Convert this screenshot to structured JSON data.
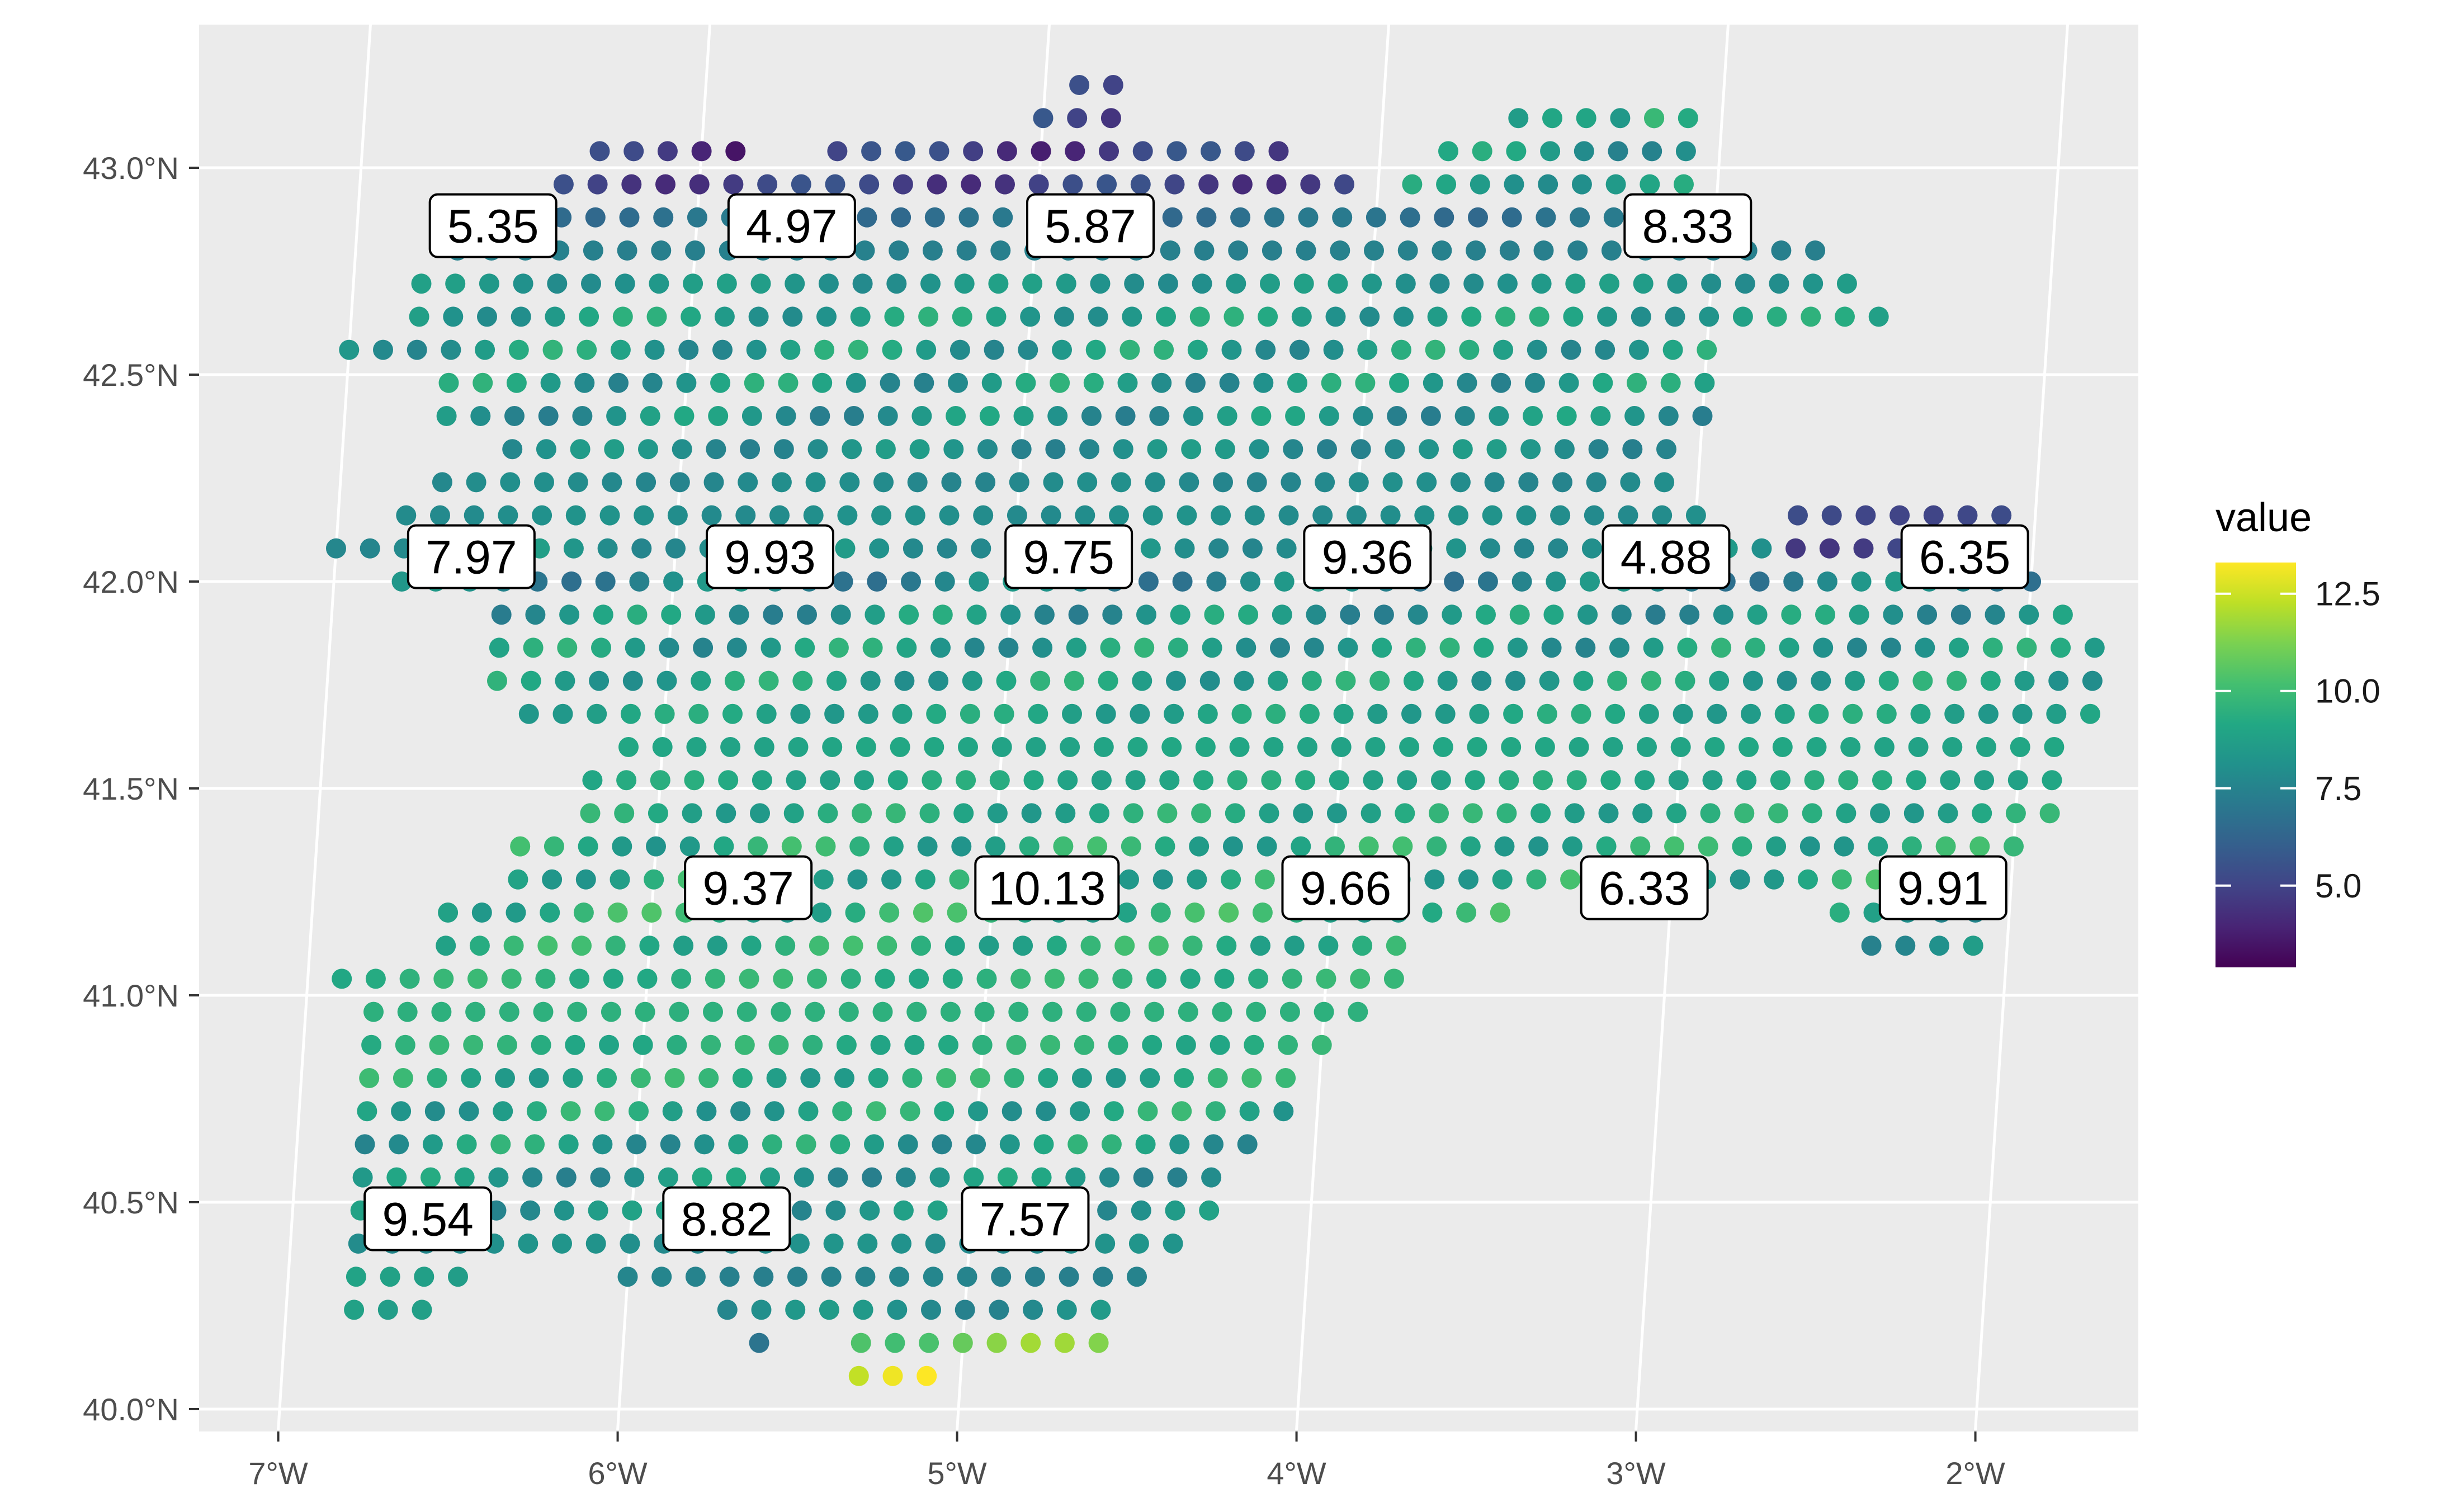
{
  "chart_data": {
    "type": "scatter",
    "title": "",
    "xlabel": "",
    "ylabel": "",
    "xlim": [
      -7.25,
      -1.6
    ],
    "ylim": [
      39.95,
      43.37
    ],
    "x_ticks": [
      {
        "value": -7,
        "label": "7°W"
      },
      {
        "value": -6,
        "label": "6°W"
      },
      {
        "value": -5,
        "label": "5°W"
      },
      {
        "value": -4,
        "label": "4°W"
      },
      {
        "value": -3,
        "label": "3°W"
      },
      {
        "value": -2,
        "label": "2°W"
      }
    ],
    "y_ticks": [
      {
        "value": 40.0,
        "label": "40.0°N"
      },
      {
        "value": 40.5,
        "label": "40.5°N"
      },
      {
        "value": 41.0,
        "label": "41.0°N"
      },
      {
        "value": 41.5,
        "label": "41.5°N"
      },
      {
        "value": 42.0,
        "label": "42.0°N"
      },
      {
        "value": 42.5,
        "label": "42.5°N"
      },
      {
        "value": 43.0,
        "label": "43.0°N"
      }
    ],
    "grid": true,
    "legend": {
      "title": "value",
      "position": "right",
      "range": [
        2.9,
        13.3
      ],
      "ticks": [
        {
          "value": 5.0,
          "label": "5.0"
        },
        {
          "value": 7.5,
          "label": "7.5"
        },
        {
          "value": 10.0,
          "label": "10.0"
        },
        {
          "value": 12.5,
          "label": "12.5"
        }
      ],
      "colormap": "viridis"
    },
    "point_grid": {
      "lon_step": 0.1,
      "lat_step": 0.08
    },
    "point_rows": [
      {
        "lat": 43.2,
        "segs": [
          [
            -4.9,
            -4.8,
            4.5
          ]
        ]
      },
      {
        "lat": 43.12,
        "segs": [
          [
            -5.0,
            -4.8,
            5.5
          ],
          [
            -3.6,
            -3.2,
            8.0
          ],
          [
            -3.2,
            -3.1,
            10.2
          ]
        ]
      },
      {
        "lat": 43.04,
        "segs": [
          [
            -6.3,
            -5.9,
            4.4
          ],
          [
            -5.6,
            -4.3,
            4.8
          ],
          [
            -3.8,
            -3.1,
            8.4
          ]
        ]
      },
      {
        "lat": 42.96,
        "segs": [
          [
            -6.4,
            -4.1,
            4.9
          ],
          [
            -3.9,
            -3.1,
            8.6
          ]
        ]
      },
      {
        "lat": 42.88,
        "segs": [
          [
            -6.5,
            -3.0,
            6.8
          ]
        ]
      },
      {
        "lat": 42.8,
        "segs": [
          [
            -6.7,
            -2.7,
            7.4
          ]
        ]
      },
      {
        "lat": 42.72,
        "segs": [
          [
            -6.8,
            -2.6,
            8.3
          ]
        ]
      },
      {
        "lat": 42.64,
        "segs": [
          [
            -6.8,
            -2.5,
            8.7
          ]
        ]
      },
      {
        "lat": 42.56,
        "segs": [
          [
            -7.0,
            -3.0,
            8.6
          ]
        ]
      },
      {
        "lat": 42.48,
        "segs": [
          [
            -6.7,
            -3.0,
            8.5
          ]
        ]
      },
      {
        "lat": 42.4,
        "segs": [
          [
            -6.7,
            -3.0,
            8.2
          ]
        ]
      },
      {
        "lat": 42.32,
        "segs": [
          [
            -6.5,
            -3.1,
            8.0
          ]
        ]
      },
      {
        "lat": 42.24,
        "segs": [
          [
            -6.7,
            -3.1,
            7.8
          ]
        ]
      },
      {
        "lat": 42.16,
        "segs": [
          [
            -6.8,
            -3.0,
            8.0
          ],
          [
            -2.7,
            -2.1,
            5.2
          ]
        ]
      },
      {
        "lat": 42.08,
        "segs": [
          [
            -7.0,
            -2.8,
            8.2
          ],
          [
            -2.7,
            -2.1,
            5.1
          ]
        ]
      },
      {
        "lat": 42.0,
        "segs": [
          [
            -6.8,
            -2.0,
            7.6
          ]
        ]
      },
      {
        "lat": 41.92,
        "segs": [
          [
            -6.5,
            -1.9,
            8.3
          ]
        ]
      },
      {
        "lat": 41.84,
        "segs": [
          [
            -6.5,
            -1.8,
            8.6
          ]
        ]
      },
      {
        "lat": 41.76,
        "segs": [
          [
            -6.5,
            -1.8,
            8.8
          ]
        ]
      },
      {
        "lat": 41.68,
        "segs": [
          [
            -6.4,
            -1.8,
            8.9
          ]
        ]
      },
      {
        "lat": 41.6,
        "segs": [
          [
            -6.1,
            -1.9,
            9.0
          ]
        ]
      },
      {
        "lat": 41.52,
        "segs": [
          [
            -6.2,
            -1.9,
            9.1
          ]
        ]
      },
      {
        "lat": 41.44,
        "segs": [
          [
            -6.2,
            -1.9,
            9.1
          ]
        ]
      },
      {
        "lat": 41.36,
        "segs": [
          [
            -6.4,
            -2.0,
            9.2
          ]
        ]
      },
      {
        "lat": 41.28,
        "segs": [
          [
            -6.4,
            -2.1,
            9.3
          ]
        ]
      },
      {
        "lat": 41.2,
        "segs": [
          [
            -6.6,
            -3.5,
            9.4
          ],
          [
            -2.5,
            -2.1,
            8.6
          ]
        ]
      },
      {
        "lat": 41.12,
        "segs": [
          [
            -6.6,
            -3.8,
            9.4
          ],
          [
            -2.4,
            -2.1,
            8.2
          ]
        ]
      },
      {
        "lat": 41.04,
        "segs": [
          [
            -6.9,
            -3.8,
            9.5
          ]
        ]
      },
      {
        "lat": 40.96,
        "segs": [
          [
            -6.8,
            -3.9,
            9.5
          ]
        ]
      },
      {
        "lat": 40.88,
        "segs": [
          [
            -6.8,
            -4.0,
            9.4
          ]
        ]
      },
      {
        "lat": 40.8,
        "segs": [
          [
            -6.8,
            -4.1,
            9.2
          ]
        ]
      },
      {
        "lat": 40.72,
        "segs": [
          [
            -6.8,
            -4.1,
            8.9
          ]
        ]
      },
      {
        "lat": 40.64,
        "segs": [
          [
            -6.8,
            -4.2,
            8.6
          ]
        ]
      },
      {
        "lat": 40.56,
        "segs": [
          [
            -6.8,
            -4.3,
            8.3
          ]
        ]
      },
      {
        "lat": 40.48,
        "segs": [
          [
            -6.8,
            -4.3,
            8.2
          ]
        ]
      },
      {
        "lat": 40.4,
        "segs": [
          [
            -6.8,
            -4.4,
            8.0
          ]
        ]
      },
      {
        "lat": 40.32,
        "segs": [
          [
            -6.8,
            -6.5,
            8.8
          ],
          [
            -6.0,
            -4.5,
            7.5
          ]
        ]
      },
      {
        "lat": 40.24,
        "segs": [
          [
            -6.8,
            -6.6,
            9.2
          ],
          [
            -5.7,
            -4.6,
            8.0
          ]
        ]
      },
      {
        "lat": 40.16,
        "segs": [
          [
            -5.6,
            -5.6,
            6.0
          ],
          [
            -5.3,
            -4.6,
            11.0
          ]
        ]
      },
      {
        "lat": 40.08,
        "segs": [
          [
            -5.3,
            -5.1,
            13.0
          ]
        ]
      }
    ],
    "labels": [
      {
        "lon": -6.6,
        "lat": 42.86,
        "text": "5.35"
      },
      {
        "lon": -5.72,
        "lat": 42.86,
        "text": "4.97"
      },
      {
        "lon": -4.84,
        "lat": 42.86,
        "text": "5.87"
      },
      {
        "lon": -3.08,
        "lat": 42.86,
        "text": "8.33"
      },
      {
        "lon": -6.6,
        "lat": 42.06,
        "text": "7.97"
      },
      {
        "lon": -5.72,
        "lat": 42.06,
        "text": "9.93"
      },
      {
        "lon": -4.84,
        "lat": 42.06,
        "text": "9.75"
      },
      {
        "lon": -3.96,
        "lat": 42.06,
        "text": "9.36"
      },
      {
        "lon": -3.08,
        "lat": 42.06,
        "text": "4.88"
      },
      {
        "lon": -2.2,
        "lat": 42.06,
        "text": "6.35"
      },
      {
        "lon": -5.72,
        "lat": 41.26,
        "text": "9.37"
      },
      {
        "lon": -4.84,
        "lat": 41.26,
        "text": "10.13"
      },
      {
        "lon": -3.96,
        "lat": 41.26,
        "text": "9.66"
      },
      {
        "lon": -3.08,
        "lat": 41.26,
        "text": "6.33"
      },
      {
        "lon": -2.2,
        "lat": 41.26,
        "text": "9.91"
      },
      {
        "lon": -6.6,
        "lat": 40.46,
        "text": "9.54"
      },
      {
        "lon": -5.72,
        "lat": 40.46,
        "text": "8.82"
      },
      {
        "lon": -4.84,
        "lat": 40.46,
        "text": "7.57"
      }
    ],
    "colors": {
      "panel_background": "#ebebeb",
      "grid": "#ffffff",
      "axis_text": "#4d4d4d",
      "label_fill": "#ffffff",
      "label_border": "#000000"
    }
  }
}
